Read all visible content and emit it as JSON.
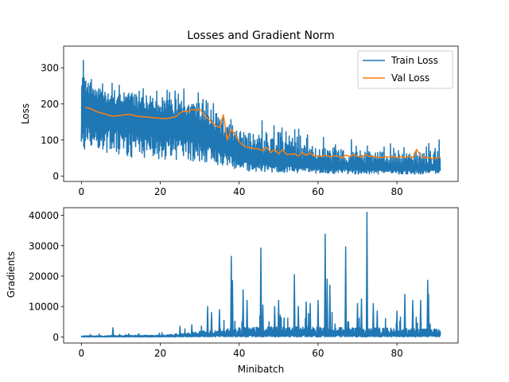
{
  "chart_data": [
    {
      "type": "line",
      "title": "Losses and Gradient Norm",
      "xlabel": "",
      "ylabel": "Loss",
      "xlim": [
        -4.5,
        95.5
      ],
      "ylim": [
        -15,
        360
      ],
      "xticks": [
        0,
        20,
        40,
        60,
        80
      ],
      "yticks": [
        0,
        100,
        200,
        300
      ],
      "legend": "top-right",
      "series": [
        {
          "name": "Train Loss",
          "color": "#1f77b4",
          "x_range": [
            0,
            91
          ],
          "envelope": {
            "x": [
              0,
              0.5,
              1,
              3,
              5,
              10,
              15,
              20,
              25,
              30,
              33,
              35,
              37,
              40,
              45,
              50,
              55,
              60,
              65,
              70,
              75,
              80,
              85,
              88,
              91
            ],
            "upper": [
              270,
              345,
              300,
              290,
              280,
              270,
              260,
              255,
              250,
              240,
              230,
              215,
              205,
              170,
              160,
              140,
              130,
              120,
              110,
              100,
              100,
              95,
              95,
              90,
              110
            ],
            "lower": [
              30,
              60,
              70,
              65,
              60,
              55,
              50,
              45,
              45,
              40,
              35,
              30,
              25,
              15,
              12,
              10,
              8,
              8,
              6,
              5,
              5,
              5,
              5,
              5,
              5
            ],
            "typical": [
              230,
              230,
              230,
              215,
              205,
              195,
              185,
              175,
              165,
              150,
              130,
              115,
              100,
              75,
              60,
              50,
              45,
              40,
              38,
              35,
              33,
              32,
              30,
              30,
              30
            ]
          }
        },
        {
          "name": "Val Loss",
          "color": "#ff7f0e",
          "x": [
            1,
            2,
            3,
            4,
            5,
            6,
            7,
            8,
            9,
            10,
            11,
            12,
            13,
            14,
            15,
            16,
            17,
            18,
            19,
            20,
            21,
            22,
            23,
            24,
            25,
            26,
            27,
            28,
            29,
            30,
            31,
            32,
            33,
            34,
            35,
            36,
            37,
            38,
            39,
            40,
            41,
            42,
            43,
            44,
            45,
            46,
            47,
            48,
            49,
            50,
            51,
            52,
            53,
            54,
            55,
            56,
            57,
            58,
            59,
            60,
            61,
            62,
            63,
            64,
            65,
            66,
            67,
            68,
            69,
            70,
            71,
            72,
            73,
            74,
            75,
            76,
            77,
            78,
            79,
            80,
            81,
            82,
            83,
            84,
            85,
            86,
            87,
            88,
            89,
            90,
            91
          ],
          "y": [
            190,
            188,
            183,
            178,
            175,
            172,
            168,
            166,
            167,
            168,
            170,
            171,
            169,
            166,
            165,
            164,
            163,
            162,
            161,
            160,
            159,
            160,
            162,
            165,
            175,
            180,
            178,
            185,
            182,
            186,
            170,
            160,
            150,
            140,
            135,
            170,
            100,
            130,
            115,
            95,
            85,
            80,
            78,
            76,
            75,
            70,
            80,
            65,
            74,
            62,
            73,
            60,
            60,
            62,
            55,
            66,
            57,
            64,
            55,
            56,
            54,
            58,
            53,
            56,
            55,
            50,
            58,
            54,
            60,
            55,
            52,
            60,
            54,
            55,
            52,
            50,
            54,
            52,
            55,
            50,
            54,
            51,
            55,
            50,
            74,
            55,
            50,
            52,
            48,
            50,
            52
          ]
        }
      ]
    },
    {
      "type": "line",
      "title": "",
      "xlabel": "Minibatch",
      "ylabel": "Gradients",
      "xlim": [
        -4.5,
        95.5
      ],
      "ylim": [
        -2000,
        42500
      ],
      "xticks": [
        0,
        20,
        40,
        60,
        80
      ],
      "yticks": [
        0,
        10000,
        20000,
        30000,
        40000
      ],
      "series": [
        {
          "name": "",
          "color": "#1f77b4",
          "x_range": [
            0,
            91
          ],
          "baseline": {
            "x": [
              0,
              10,
              20,
              25,
              30,
              35,
              40,
              50,
              60,
              70,
              80,
              91
            ],
            "y": [
              300,
              400,
              500,
              900,
              1500,
              2200,
              2600,
              2800,
              2800,
              2600,
              2400,
              2200
            ]
          },
          "spikes": {
            "x": [
              8,
              12,
              25,
              28,
              32,
              33,
              35,
              38,
              38.3,
              41,
              42,
              45.5,
              46,
              49,
              50,
              54,
              55,
              57,
              58,
              60,
              61.8,
              62.3,
              63,
              67,
              70,
              71,
              72.4,
              74,
              75,
              80,
              82,
              84,
              86,
              87.8,
              88,
              90
            ],
            "y": [
              3000,
              1000,
              3500,
              4000,
              10000,
              8000,
              9000,
              26500,
              18500,
              15500,
              12000,
              29200,
              10500,
              10000,
              12000,
              20500,
              10000,
              11500,
              11000,
              12000,
              33800,
              19000,
              17000,
              29600,
              11000,
              12500,
              41000,
              11000,
              8500,
              8500,
              14000,
              12000,
              12000,
              18600,
              14000,
              2500
            ]
          }
        }
      ]
    }
  ]
}
